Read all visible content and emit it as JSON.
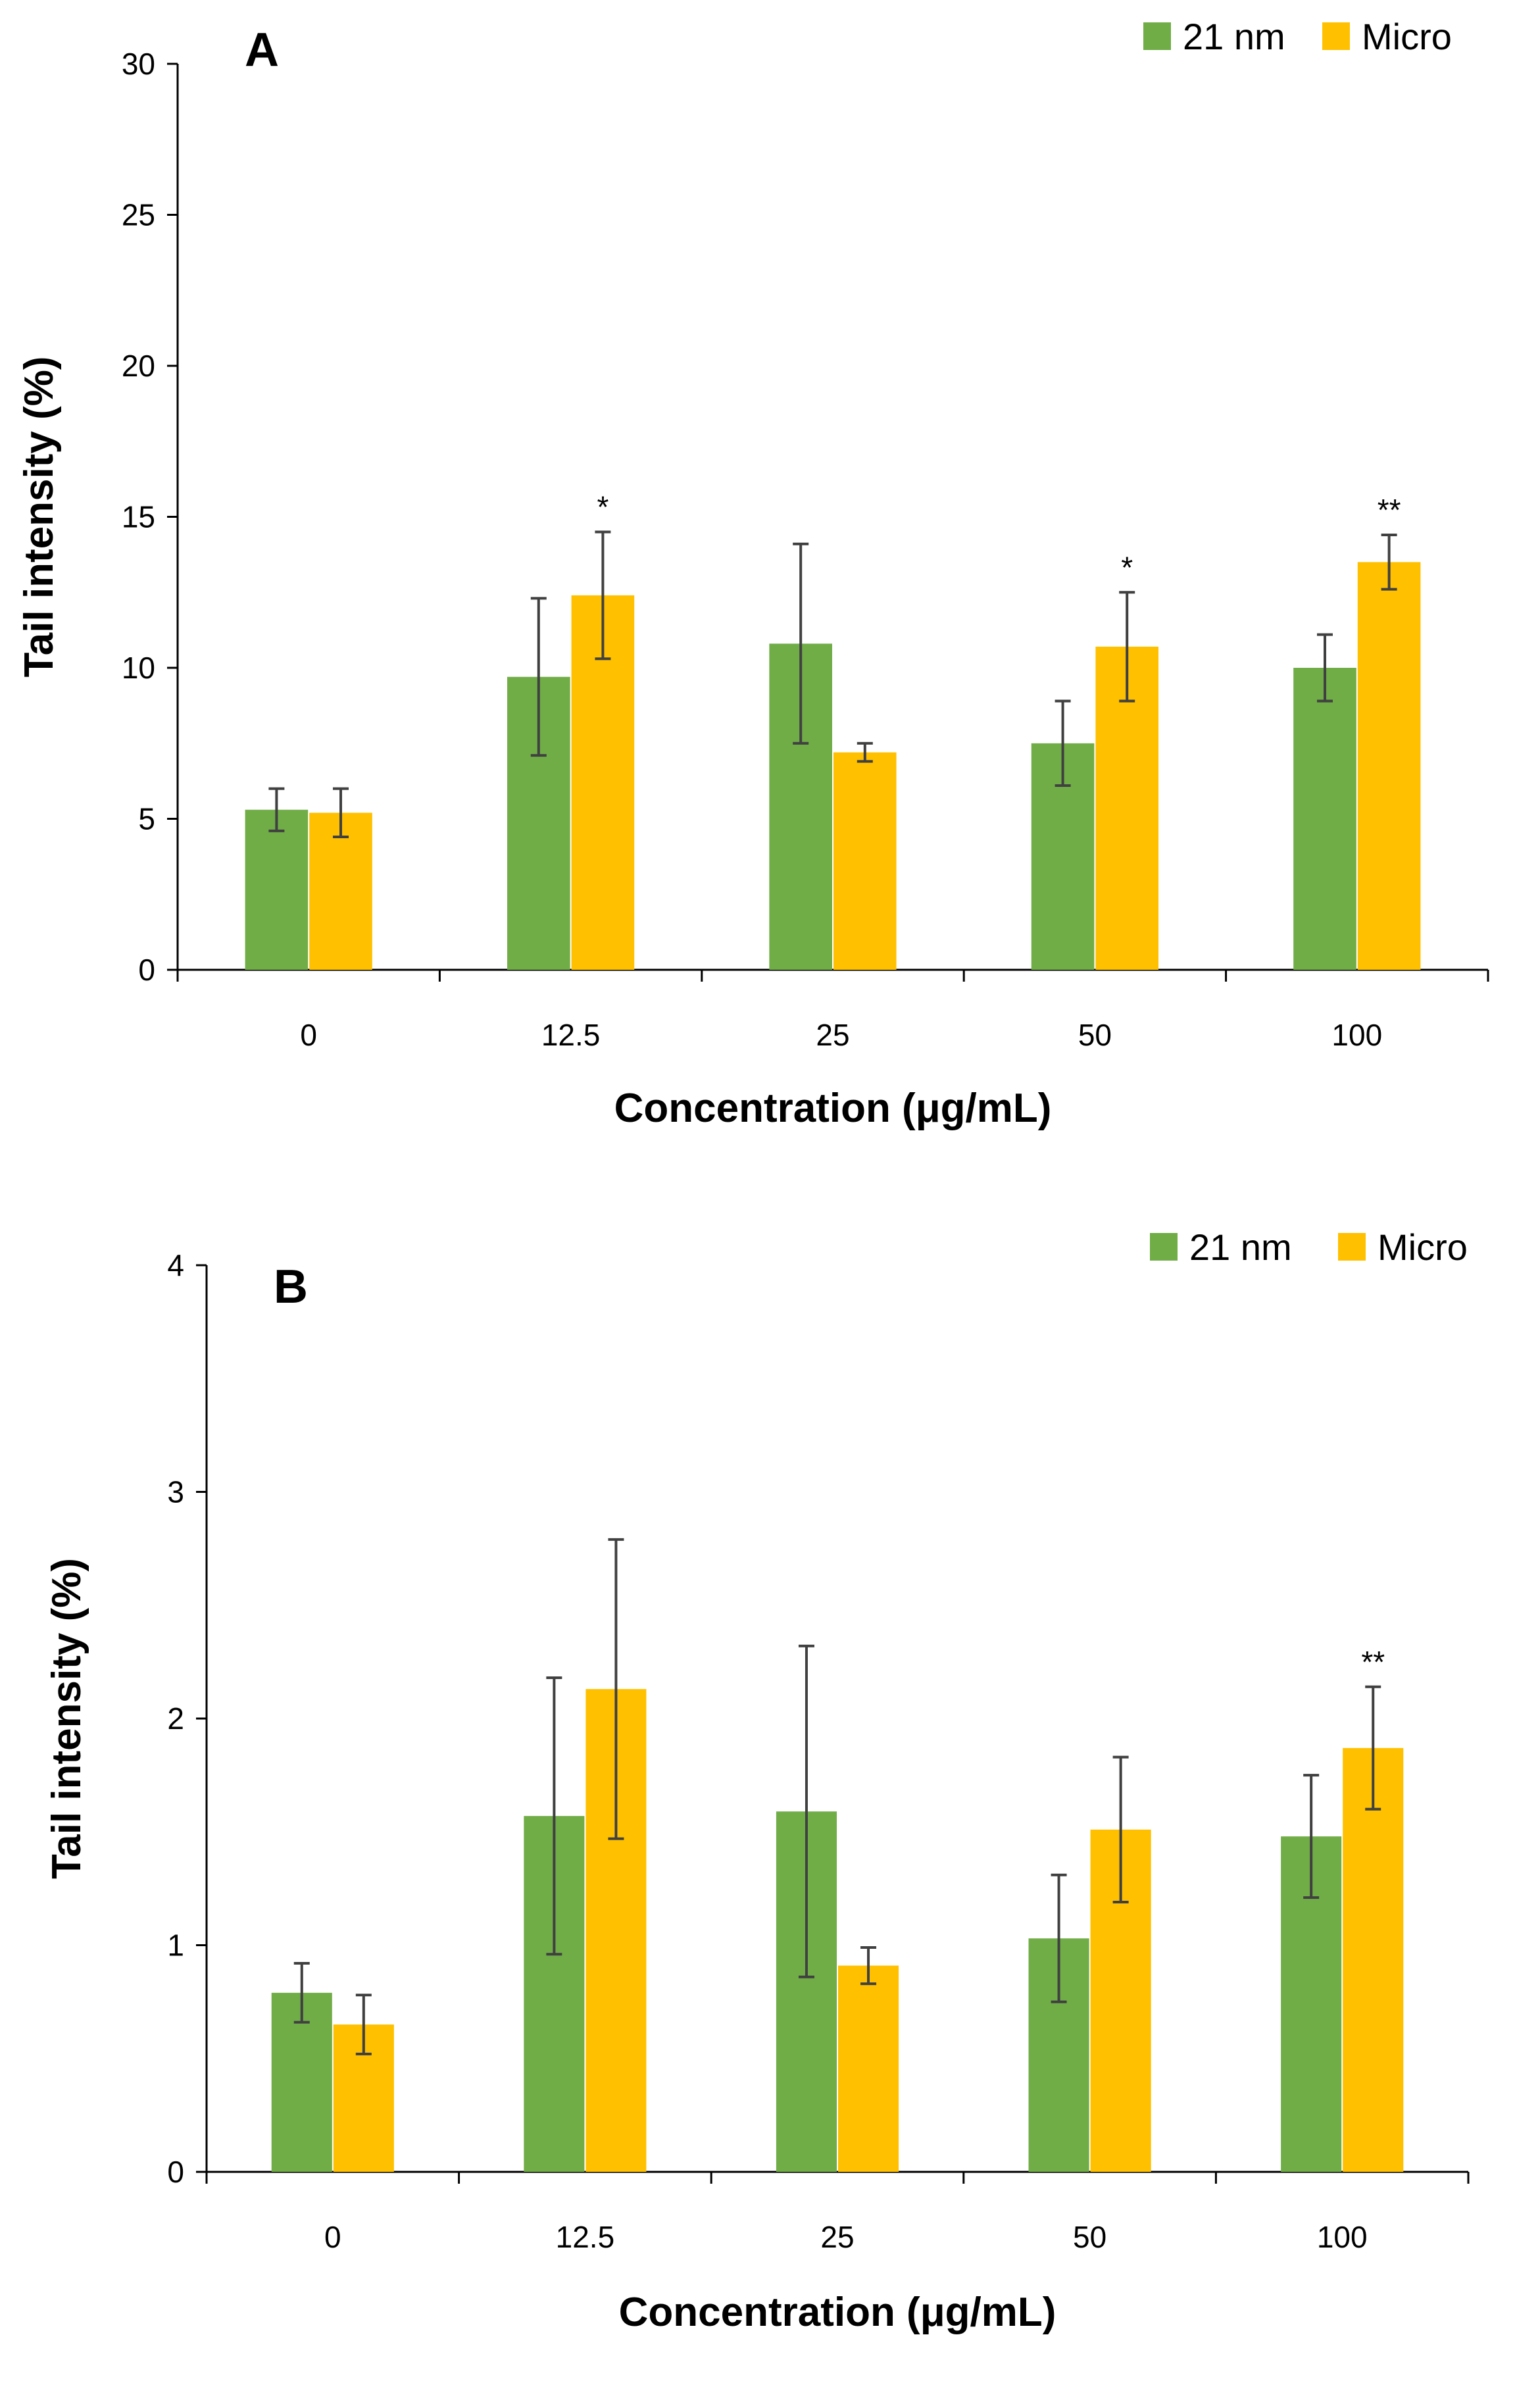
{
  "chart_data": [
    {
      "type": "bar",
      "panel_label": "A",
      "categories": [
        "0",
        "12.5",
        "25",
        "50",
        "100"
      ],
      "xlabel": "Concentration (μg/mL)",
      "ylabel": "Tail intensity (%)",
      "ylim": [
        0,
        30
      ],
      "yticks": [
        0,
        5,
        10,
        15,
        20,
        25,
        30
      ],
      "legend_position": "top-right",
      "series": [
        {
          "name": "21 nm",
          "color": "#70ad47",
          "values": [
            5.3,
            9.7,
            10.8,
            7.5,
            10.0
          ],
          "errors": [
            0.7,
            2.6,
            3.3,
            1.4,
            1.1
          ]
        },
        {
          "name": "Micro",
          "color": "#ffc000",
          "values": [
            5.2,
            12.4,
            7.2,
            10.7,
            13.5
          ],
          "errors": [
            0.8,
            2.1,
            0.3,
            1.8,
            0.9
          ]
        }
      ],
      "annotations": [
        {
          "category_index": 1,
          "series_index": 1,
          "text": "*"
        },
        {
          "category_index": 3,
          "series_index": 1,
          "text": "*"
        },
        {
          "category_index": 4,
          "series_index": 1,
          "text": "**"
        }
      ]
    },
    {
      "type": "bar",
      "panel_label": "B",
      "categories": [
        "0",
        "12.5",
        "25",
        "50",
        "100"
      ],
      "xlabel": "Concentration (μg/mL)",
      "ylabel": "Tail intensity (%)",
      "ylim": [
        0,
        4
      ],
      "yticks": [
        0,
        1,
        2,
        3,
        4
      ],
      "legend_position": "top-right",
      "series": [
        {
          "name": "21 nm",
          "color": "#70ad47",
          "values": [
            0.79,
            1.57,
            1.59,
            1.03,
            1.48
          ],
          "errors": [
            0.13,
            0.61,
            0.73,
            0.28,
            0.27
          ]
        },
        {
          "name": "Micro",
          "color": "#ffc000",
          "values": [
            0.65,
            2.13,
            0.91,
            1.51,
            1.87
          ],
          "errors": [
            0.13,
            0.66,
            0.08,
            0.32,
            0.27
          ]
        }
      ],
      "annotations": [
        {
          "category_index": 4,
          "series_index": 1,
          "text": "**"
        }
      ]
    }
  ]
}
